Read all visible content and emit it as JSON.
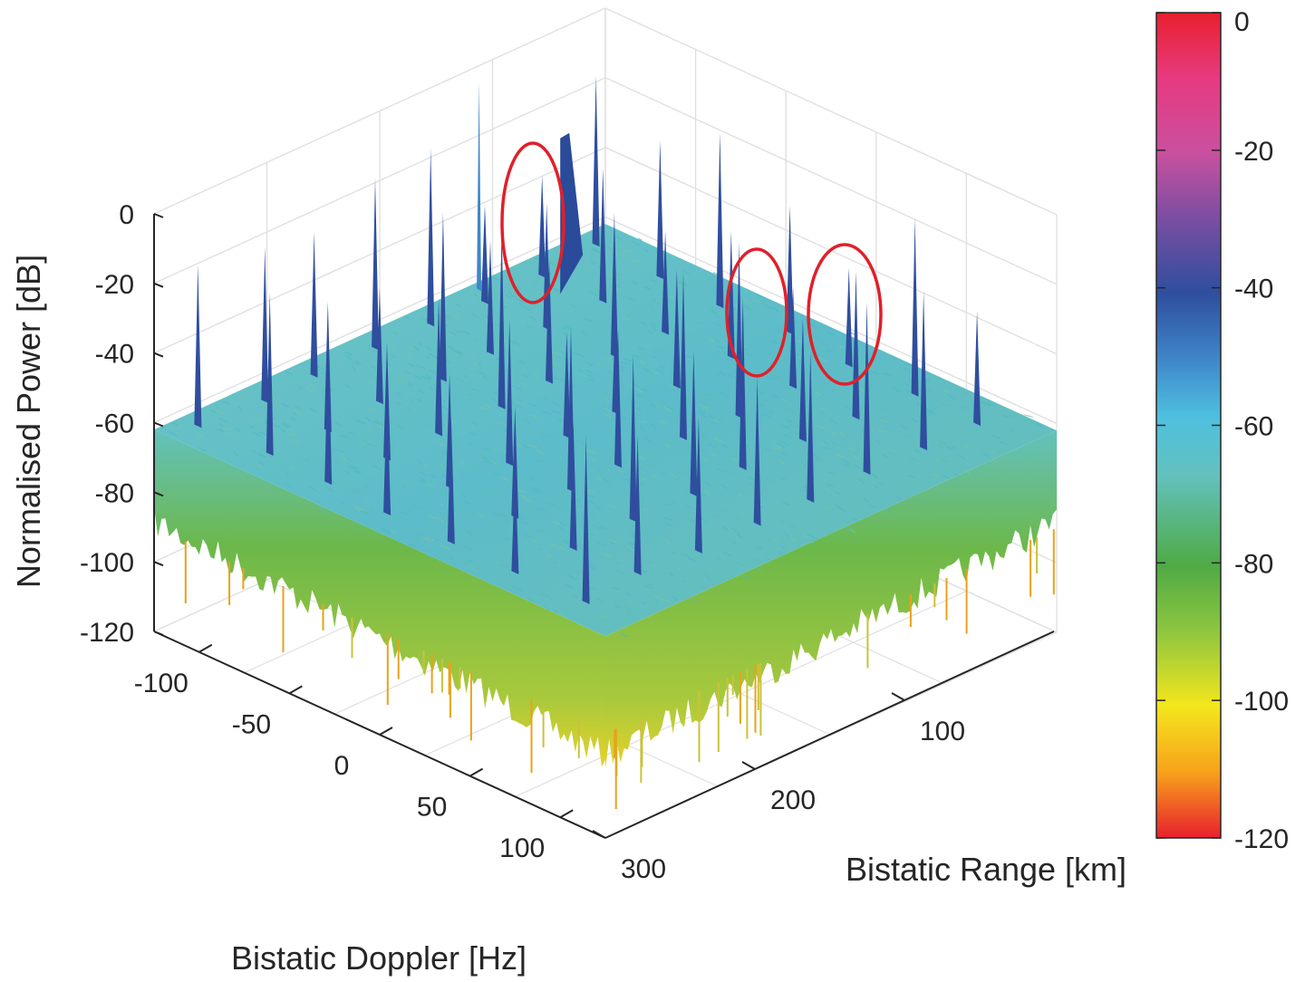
{
  "chart_data": {
    "type": "surface3d",
    "title": "",
    "zlabel": "Normalised Power [dB]",
    "xlabel": "Bistatic Doppler [Hz]",
    "ylabel": "Bistatic Range [km]",
    "zlim": [
      -120,
      0
    ],
    "xlim": [
      -125,
      125
    ],
    "ylim": [
      0,
      300
    ],
    "z_ticks": [
      "0",
      "-20",
      "-40",
      "-60",
      "-80",
      "-100",
      "-120"
    ],
    "x_ticks": [
      "-100",
      "-50",
      "0",
      "50",
      "100"
    ],
    "y_ticks": [
      "100",
      "200",
      "300"
    ],
    "colorbar": {
      "ticks": [
        "0",
        "-20",
        "-40",
        "-60",
        "-80",
        "-100",
        "-120"
      ],
      "range": [
        -120,
        0
      ],
      "colors": [
        "#e8202e",
        "#e73a80",
        "#c9509f",
        "#7a4ea2",
        "#2f4e9e",
        "#3f86c9",
        "#4ec0df",
        "#63c1be",
        "#4faa45",
        "#8ec63f",
        "#f4e61c",
        "#f7a21b",
        "#e8202e"
      ]
    },
    "noise_floor_db": -62,
    "grid": true,
    "annotations": [
      {
        "shape": "ellipse",
        "color": "#e0202a"
      },
      {
        "shape": "ellipse",
        "color": "#e0202a"
      },
      {
        "shape": "ellipse",
        "color": "#e0202a"
      }
    ],
    "colors": {
      "surface_top": "#63c1be",
      "surface_side": "#6cb84a",
      "spike": "#2f4e9e",
      "axis": "#262626",
      "grid": "#e0e0e0"
    }
  }
}
